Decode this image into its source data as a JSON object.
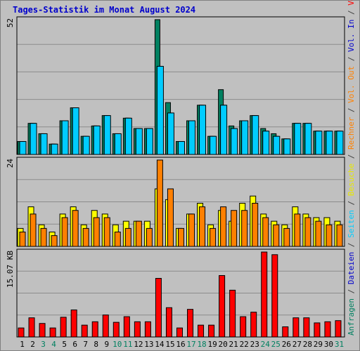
{
  "title": "Tages-Statistik im Monat August 2024",
  "right_legend": [
    {
      "text": "Anfragen",
      "color": "#008060"
    },
    {
      "text": " / ",
      "color": "#404040"
    },
    {
      "text": "Dateien",
      "color": "#0000cc"
    },
    {
      "text": " / ",
      "color": "#404040"
    },
    {
      "text": "Seiten",
      "color": "#00ccff"
    },
    {
      "text": " / ",
      "color": "#404040"
    },
    {
      "text": "Besuche",
      "color": "#e8e800"
    },
    {
      "text": " / ",
      "color": "#404040"
    },
    {
      "text": "Rechner",
      "color": "#ff8000"
    },
    {
      "text": " / ",
      "color": "#404040"
    },
    {
      "text": "Vol. Out",
      "color": "#ff8000"
    },
    {
      "text": " / ",
      "color": "#404040"
    },
    {
      "text": "Vol. In",
      "color": "#0000cc"
    },
    {
      "text": " / ",
      "color": "#404040"
    },
    {
      "text": "Volumen",
      "color": "#ff0000"
    }
  ],
  "chart_data": [
    {
      "type": "bar",
      "panel": "top",
      "ymax_label": "52",
      "ymax": 52,
      "categories": [
        "1",
        "2",
        "3",
        "4",
        "5",
        "6",
        "7",
        "8",
        "9",
        "10",
        "11",
        "12",
        "13",
        "14",
        "15",
        "16",
        "17",
        "18",
        "19",
        "20",
        "21",
        "22",
        "23",
        "24",
        "25",
        "26",
        "27",
        "28",
        "29",
        "30",
        "31"
      ],
      "weekend_days": [
        "3",
        "4",
        "10",
        "11",
        "17",
        "18",
        "24",
        "25",
        "31"
      ],
      "grid": true,
      "series": [
        {
          "name": "Anfragen",
          "color": "#008060",
          "values": [
            5,
            12,
            8,
            4,
            13,
            18,
            7,
            11,
            15,
            8,
            14,
            10,
            10,
            52,
            20,
            5,
            13,
            19,
            7,
            25,
            11,
            13,
            15,
            10,
            8,
            6,
            12,
            12,
            9,
            9,
            9
          ]
        },
        {
          "name": "Dateien",
          "color": "#0000cc",
          "values": [
            5,
            12,
            8,
            4,
            13,
            18,
            7,
            11,
            15,
            8,
            14,
            10,
            10,
            34,
            16,
            5,
            13,
            19,
            7,
            19,
            10,
            13,
            15,
            9,
            7,
            6,
            12,
            12,
            9,
            9,
            9
          ]
        },
        {
          "name": "Seiten",
          "color": "#00ccff",
          "values": [
            5,
            12,
            8,
            4,
            13,
            18,
            7,
            11,
            15,
            8,
            14,
            10,
            10,
            34,
            16,
            5,
            13,
            19,
            7,
            19,
            10,
            13,
            15,
            9,
            7,
            6,
            12,
            12,
            9,
            9,
            9
          ]
        }
      ]
    },
    {
      "type": "bar",
      "panel": "middle",
      "ymax_label": "24",
      "ymax": 24,
      "categories": [
        "1",
        "2",
        "3",
        "4",
        "5",
        "6",
        "7",
        "8",
        "9",
        "10",
        "11",
        "12",
        "13",
        "14",
        "15",
        "16",
        "17",
        "18",
        "19",
        "20",
        "21",
        "22",
        "23",
        "24",
        "25",
        "26",
        "27",
        "28",
        "29",
        "30",
        "31"
      ],
      "grid": true,
      "series": [
        {
          "name": "Besuche",
          "color": "#ffff00",
          "values": [
            5,
            11,
            6,
            4,
            9,
            11,
            6,
            10,
            9,
            6,
            7,
            7,
            7,
            16,
            13,
            5,
            9,
            12,
            6,
            10,
            7,
            12,
            14,
            9,
            7,
            6,
            11,
            9,
            8,
            8,
            7
          ]
        },
        {
          "name": "Rechner",
          "color": "#ff8000",
          "values": [
            4,
            9,
            5,
            3,
            8,
            10,
            5,
            8,
            8,
            4,
            5,
            7,
            5,
            24,
            16,
            5,
            9,
            11,
            5,
            11,
            10,
            10,
            12,
            8,
            6,
            5,
            9,
            8,
            7,
            6,
            6
          ]
        }
      ]
    },
    {
      "type": "bar",
      "panel": "bottom",
      "ymax_label": "15.07 KB",
      "ymax": 15.07,
      "unit": "KB",
      "categories": [
        "1",
        "2",
        "3",
        "4",
        "5",
        "6",
        "7",
        "8",
        "9",
        "10",
        "11",
        "12",
        "13",
        "14",
        "15",
        "16",
        "17",
        "18",
        "19",
        "20",
        "21",
        "22",
        "23",
        "24",
        "25",
        "26",
        "27",
        "28",
        "29",
        "30",
        "31"
      ],
      "grid": true,
      "series": [
        {
          "name": "Volumen",
          "color": "#ff0000",
          "values": [
            1.6,
            3.4,
            2.4,
            1.6,
            3.5,
            4.8,
            2.1,
            2.7,
            3.9,
            2.6,
            3.6,
            2.7,
            2.7,
            10.4,
            5.2,
            1.6,
            4.9,
            2.1,
            2.1,
            10.9,
            8.3,
            3.6,
            4.4,
            15.07,
            14.6,
            1.8,
            3.4,
            3.4,
            2.5,
            2.7,
            2.9
          ]
        }
      ]
    }
  ]
}
